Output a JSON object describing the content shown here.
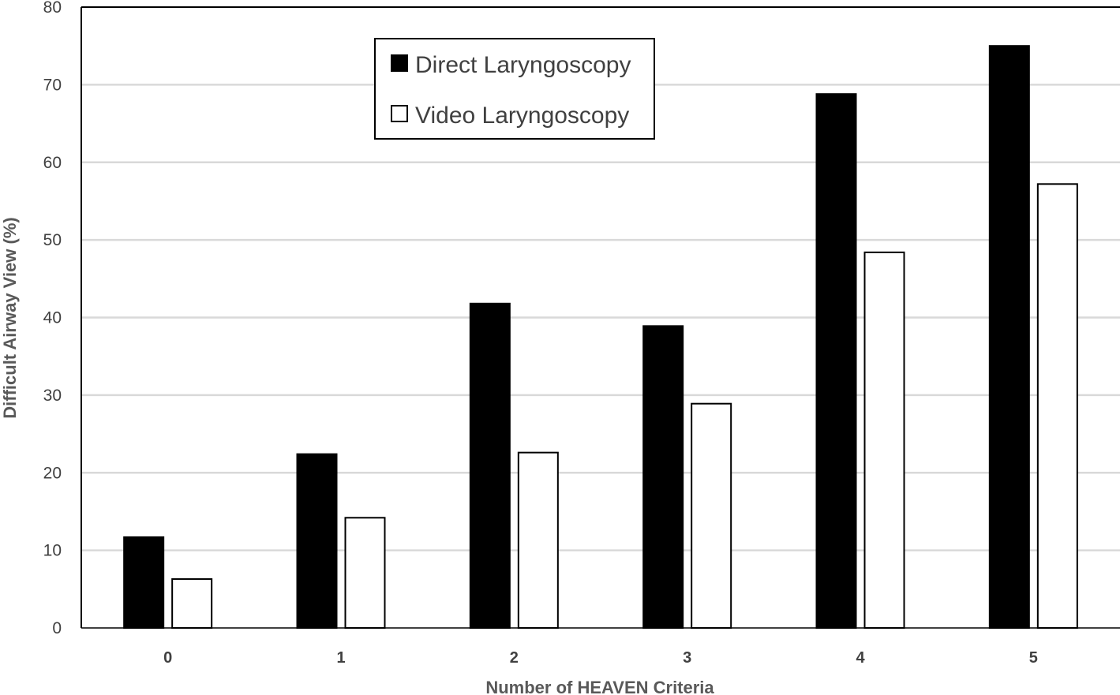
{
  "chart_data": {
    "type": "bar",
    "title": "",
    "xlabel": "Number of HEAVEN Criteria",
    "ylabel": "Difficult Airway View (%)",
    "categories": [
      "0",
      "1",
      "2",
      "3",
      "4",
      "5"
    ],
    "series": [
      {
        "name": "Direct Laryngoscopy",
        "values": [
          11.7,
          22.4,
          41.8,
          38.9,
          68.8,
          75.0
        ],
        "color": "#000000"
      },
      {
        "name": "Video Laryngoscopy",
        "values": [
          6.3,
          14.2,
          22.6,
          28.9,
          48.4,
          57.2
        ],
        "color": "#ffffff"
      }
    ],
    "ylim": [
      0,
      80
    ],
    "yticks": [
      "0",
      "10",
      "20",
      "30",
      "40",
      "50",
      "60",
      "70",
      "80"
    ],
    "grid": true,
    "legend_position": "top-center"
  }
}
